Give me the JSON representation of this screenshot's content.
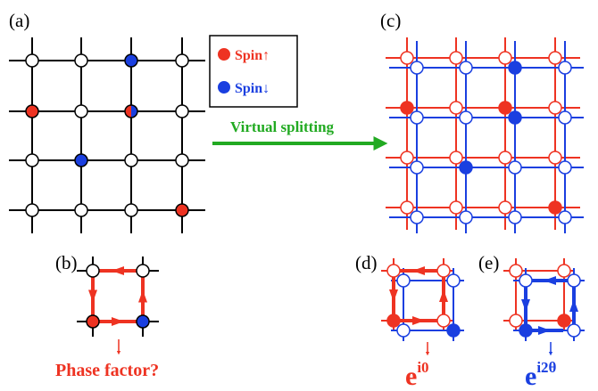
{
  "colors": {
    "spin_up": "#ee3322",
    "spin_down": "#1a3fe0",
    "arrow": "#22aa22",
    "black": "#000000"
  },
  "panels": {
    "a": "(a)",
    "b": "(b)",
    "c": "(c)",
    "d": "(d)",
    "e": "(e)"
  },
  "legend": {
    "spin_up": "Spin↑",
    "spin_down": "Spin↓"
  },
  "arrow_label": "Virtual splitting",
  "phase_question": "Phase factor?",
  "phase_d": {
    "base": "e",
    "exponent": "i0"
  },
  "phase_e": {
    "base": "e",
    "exponent": "i2θ"
  }
}
